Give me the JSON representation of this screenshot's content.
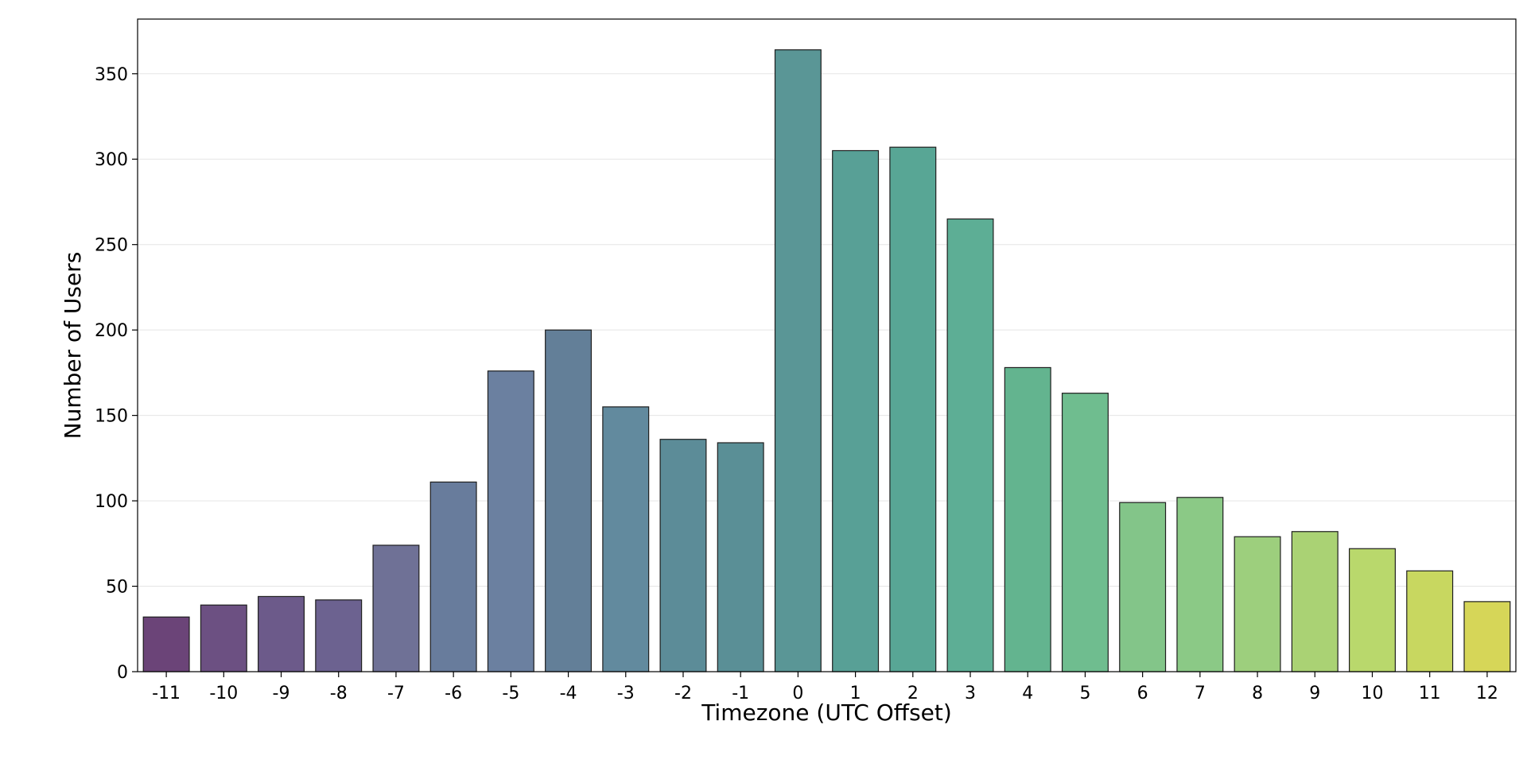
{
  "chart_data": {
    "type": "bar",
    "xlabel": "Timezone (UTC Offset)",
    "ylabel": "Number of Users",
    "categories": [
      "-11",
      "-10",
      "-9",
      "-8",
      "-7",
      "-6",
      "-5",
      "-4",
      "-3",
      "-2",
      "-1",
      "0",
      "1",
      "2",
      "3",
      "4",
      "5",
      "6",
      "7",
      "8",
      "9",
      "10",
      "11",
      "12"
    ],
    "values": [
      32,
      39,
      44,
      42,
      74,
      111,
      176,
      200,
      155,
      136,
      134,
      364,
      305,
      307,
      265,
      178,
      163,
      99,
      102,
      79,
      82,
      72,
      59,
      41
    ],
    "ylim": [
      0,
      382
    ],
    "yticks": [
      "0",
      "50",
      "100",
      "150",
      "200",
      "250",
      "300",
      "350"
    ],
    "grid": "horizontal",
    "colors": [
      "#6b4478",
      "#6c5082",
      "#6c5a8a",
      "#6c6290",
      "#6f7196",
      "#687c9c",
      "#6b80a0",
      "#637f98",
      "#628a9e",
      "#5c8c98",
      "#5a8f96",
      "#5a9696",
      "#58a096",
      "#58a695",
      "#5dae95",
      "#63b48f",
      "#6fbd8f",
      "#83c589",
      "#8bc986",
      "#9dcf7d",
      "#aad274",
      "#b9d86c",
      "#c8d760",
      "#d6d658"
    ],
    "bar_edge_color": "#1e1e1e",
    "grid_color": "#e5e5e5"
  }
}
